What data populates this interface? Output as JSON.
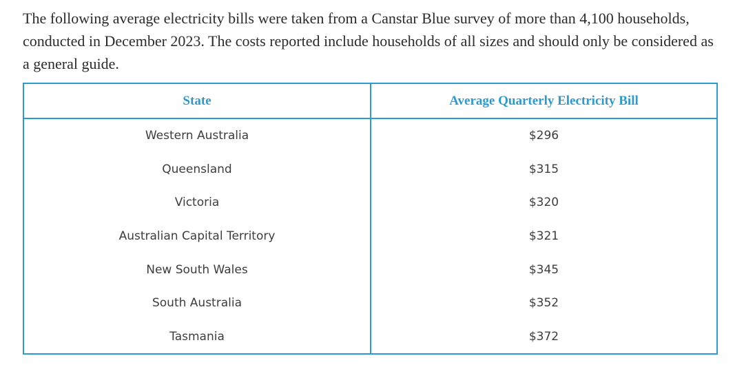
{
  "intro": {
    "text": "The following average electricity bills were taken from a Canstar Blue survey of more than 4,100 households, conducted in December 2023. The costs reported include households of all sizes and should only be considered as a general guide."
  },
  "table": {
    "headers": [
      "State",
      "Average Quarterly Electricity Bill"
    ],
    "rows": [
      [
        "Western Australia",
        "$296"
      ],
      [
        "Queensland",
        "$315"
      ],
      [
        "Victoria",
        "$320"
      ],
      [
        "Australian Capital Territory",
        "$321"
      ],
      [
        "New South Wales",
        "$345"
      ],
      [
        "South Australia",
        "$352"
      ],
      [
        "Tasmania",
        "$372"
      ]
    ]
  },
  "colors": {
    "accent": "#2b9ad1",
    "body_text": "#2b2b2b",
    "cell_text": "#3d3d3d"
  }
}
